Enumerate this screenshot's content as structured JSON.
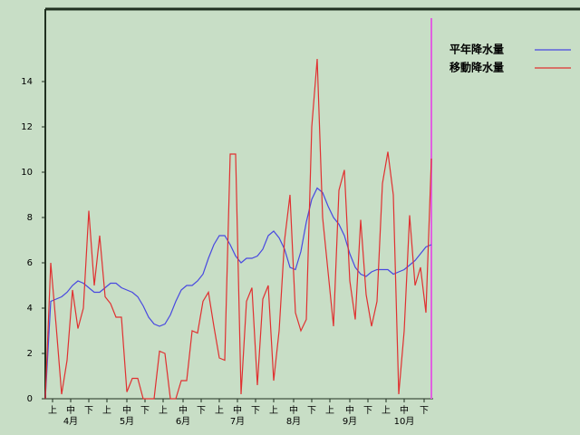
{
  "chart_data": {
    "type": "line",
    "x": [
      0,
      3,
      6,
      9,
      12,
      15,
      18,
      21,
      24,
      27,
      30,
      33,
      36,
      39,
      42,
      45,
      48,
      51,
      54,
      57,
      60,
      63,
      66,
      69,
      72,
      75,
      78,
      81,
      84,
      87,
      90,
      93,
      96,
      99,
      102,
      105,
      108,
      111,
      114,
      117,
      120,
      123,
      126,
      129,
      132,
      135,
      138,
      141,
      144,
      147,
      150,
      153,
      156,
      159,
      162,
      165,
      168,
      171,
      174,
      177,
      180,
      183,
      186,
      189,
      192,
      195,
      198,
      201,
      204,
      207,
      210,
      213
    ],
    "series": [
      {
        "name": "平年降水量",
        "color": "#4848e0",
        "values": [
          0,
          4.3,
          4.4,
          4.5,
          4.7,
          5.0,
          5.2,
          5.1,
          4.9,
          4.7,
          4.7,
          4.9,
          5.1,
          5.1,
          4.9,
          4.8,
          4.7,
          4.5,
          4.1,
          3.6,
          3.3,
          3.2,
          3.3,
          3.7,
          4.3,
          4.8,
          5.0,
          5.0,
          5.2,
          5.5,
          6.2,
          6.8,
          7.2,
          7.2,
          6.8,
          6.3,
          6.0,
          6.2,
          6.2,
          6.3,
          6.6,
          7.2,
          7.4,
          7.1,
          6.6,
          5.8,
          5.7,
          6.5,
          7.8,
          8.8,
          9.3,
          9.1,
          8.5,
          8.0,
          7.7,
          7.2,
          6.4,
          5.8,
          5.5,
          5.4,
          5.6,
          5.7,
          5.7,
          5.7,
          5.5,
          5.6,
          5.7,
          5.9,
          6.1,
          6.4,
          6.7,
          6.8
        ]
      },
      {
        "name": "移動降水量",
        "color": "#e03030",
        "values": [
          0,
          6.0,
          3.2,
          0.2,
          1.7,
          4.8,
          3.1,
          4.0,
          8.3,
          5.0,
          7.2,
          4.5,
          4.2,
          3.6,
          3.6,
          0.3,
          0.9,
          0.9,
          0,
          0,
          0,
          2.1,
          2.0,
          0,
          0,
          0.8,
          0.8,
          3.0,
          2.9,
          4.3,
          4.7,
          3.2,
          1.8,
          1.7,
          10.8,
          10.8,
          0.2,
          4.3,
          4.9,
          0.6,
          4.4,
          5.0,
          0.8,
          3.0,
          7.0,
          9.0,
          3.8,
          3.0,
          3.5,
          12.0,
          15.0,
          8.0,
          5.6,
          3.2,
          9.2,
          10.1,
          5.2,
          3.5,
          7.9,
          4.6,
          3.2,
          4.3,
          9.5,
          10.9,
          9.0,
          0.2,
          3.0,
          8.1,
          5.0,
          5.8,
          3.8,
          10.6
        ]
      }
    ],
    "xlim": [
      0,
      214
    ],
    "xticks": [
      {
        "value": 4,
        "label": "上"
      },
      {
        "value": 14,
        "label": "中"
      },
      {
        "value": 24,
        "label": "下"
      },
      {
        "value": 34,
        "label": "上"
      },
      {
        "value": 45,
        "label": "中"
      },
      {
        "value": 55,
        "label": "下"
      },
      {
        "value": 65,
        "label": "上"
      },
      {
        "value": 76,
        "label": "中"
      },
      {
        "value": 86,
        "label": "下"
      },
      {
        "value": 96,
        "label": "上"
      },
      {
        "value": 106,
        "label": "中"
      },
      {
        "value": 116,
        "label": "下"
      },
      {
        "value": 126,
        "label": "上"
      },
      {
        "value": 137,
        "label": "中"
      },
      {
        "value": 147,
        "label": "下"
      },
      {
        "value": 157,
        "label": "上"
      },
      {
        "value": 168,
        "label": "中"
      },
      {
        "value": 178,
        "label": "下"
      },
      {
        "value": 188,
        "label": "上"
      },
      {
        "value": 198,
        "label": "中"
      },
      {
        "value": 209,
        "label": "下"
      }
    ],
    "month_labels": [
      {
        "value": 14,
        "label": "4月"
      },
      {
        "value": 45,
        "label": "5月"
      },
      {
        "value": 76,
        "label": "6月"
      },
      {
        "value": 106,
        "label": "7月"
      },
      {
        "value": 137,
        "label": "8月"
      },
      {
        "value": 168,
        "label": "9月"
      },
      {
        "value": 198,
        "label": "10月"
      }
    ],
    "ylim": [
      0,
      17.2
    ],
    "yticks": [
      0,
      2,
      4,
      6,
      8,
      10,
      12,
      14
    ],
    "vline": {
      "x": 213,
      "color": "#e060e0"
    }
  }
}
